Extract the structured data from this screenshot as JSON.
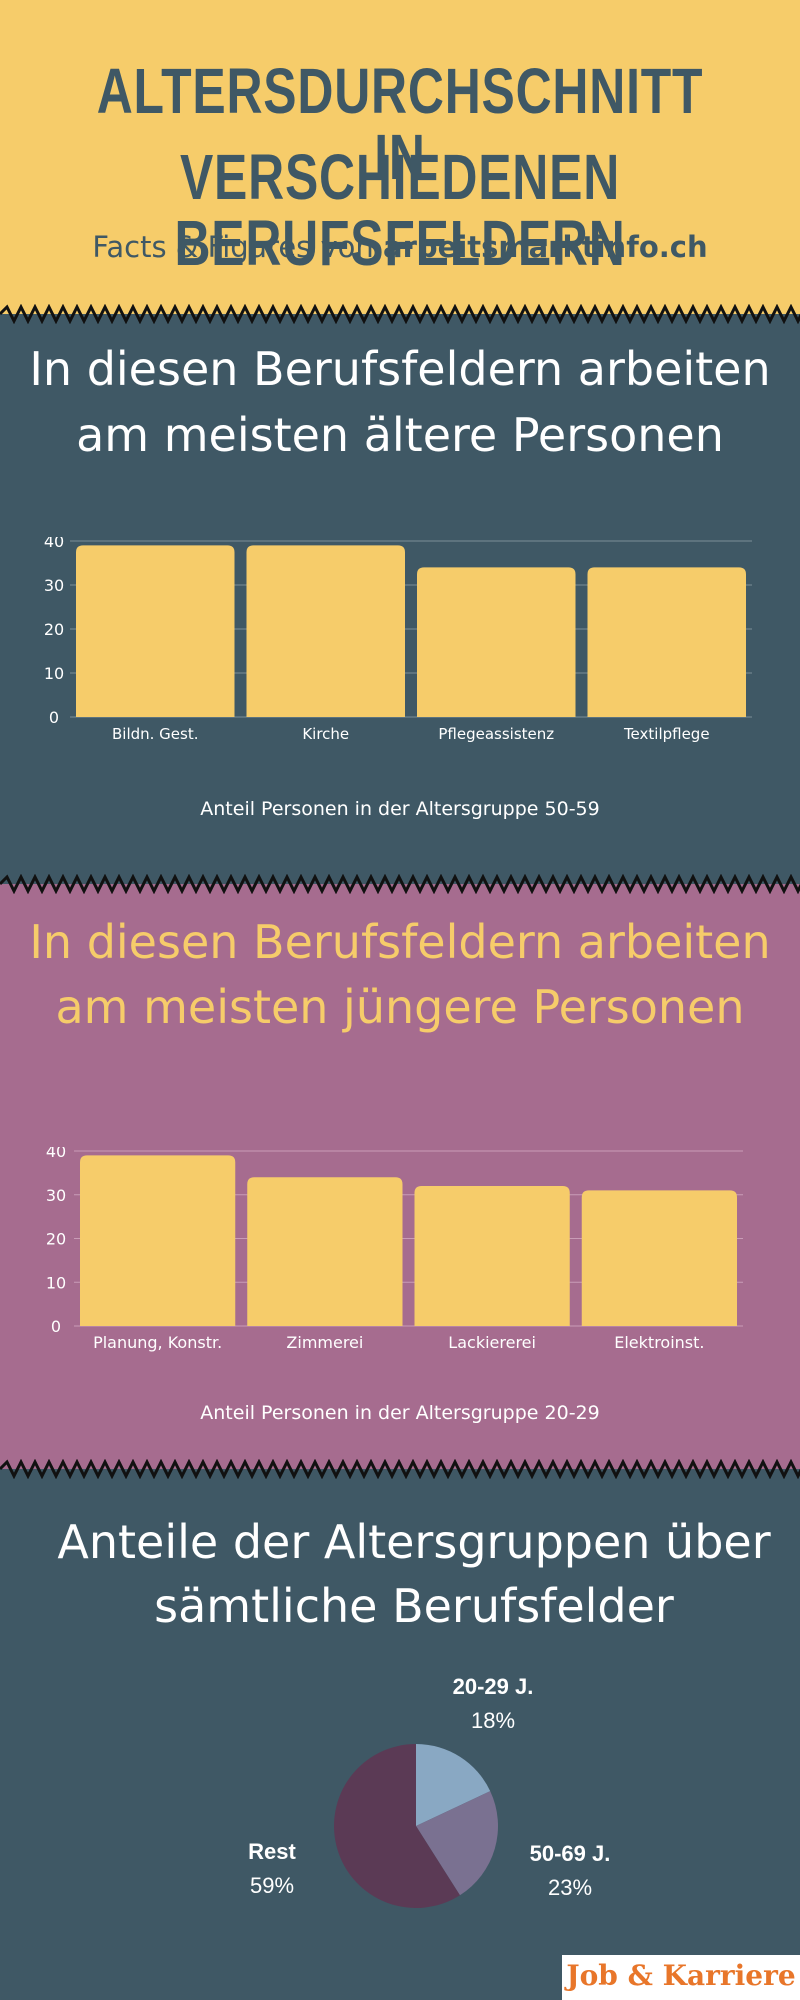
{
  "header": {
    "title_line1": "ALTERSDURCHSCHNITT IN",
    "title_line2": "VERSCHIEDENEN BERUFSFELDERN",
    "subtitle_prefix": "Facts & Figures von ",
    "subtitle_site": "arbeitsmarktinfo.ch"
  },
  "older": {
    "title_line1": "In diesen Berufsfeldern arbeiten",
    "title_line2": "am meisten ältere Personen",
    "caption": "Anteil Personen in der Altersgruppe 50-59"
  },
  "younger": {
    "title_line1": "In diesen Berufsfeldern arbeiten",
    "title_line2": "am meisten jüngere Personen",
    "caption": "Anteil Personen in der Altersgruppe 20-29"
  },
  "pie_section": {
    "title_line1": "Anteile der Altersgruppen über",
    "title_line2": "sämtliche Berufsfelder"
  },
  "brand": {
    "label": "Job & Karriere"
  },
  "colors": {
    "yellow": "#f6cc6a",
    "slate": "#3f5865",
    "mauve": "#a66c8f",
    "bar": "#f6cc6a",
    "pie_20_29": "#89a8c3",
    "pie_50_69": "#7a7191",
    "pie_rest": "#5b3a55",
    "brand_orange": "#e8762a"
  },
  "chart_data": [
    {
      "type": "bar",
      "categories": [
        "Bildn. Gest.",
        "Kirche",
        "Pflegeassistenz",
        "Textilpflege"
      ],
      "values": [
        39,
        39,
        34,
        34
      ],
      "ylim": [
        0,
        40
      ],
      "yticks": [
        0,
        10,
        20,
        30,
        40
      ],
      "grid": true,
      "xlabel": "Anteil Personen in der Altersgruppe 50-59",
      "ylabel": ""
    },
    {
      "type": "bar",
      "categories": [
        "Planung, Konstr.",
        "Zimmerei",
        "Lackiererei",
        "Elektroinst."
      ],
      "values": [
        39,
        34,
        32,
        31
      ],
      "ylim": [
        0,
        40
      ],
      "yticks": [
        0,
        10,
        20,
        30,
        40
      ],
      "grid": true,
      "xlabel": "Anteil Personen in der Altersgruppe 20-29",
      "ylabel": ""
    },
    {
      "type": "pie",
      "slices": [
        {
          "label": "20-29 J.",
          "value": 18,
          "display": "18%"
        },
        {
          "label": "50-69 J.",
          "value": 23,
          "display": "23%"
        },
        {
          "label": "Rest",
          "value": 59,
          "display": "59%"
        }
      ]
    }
  ]
}
